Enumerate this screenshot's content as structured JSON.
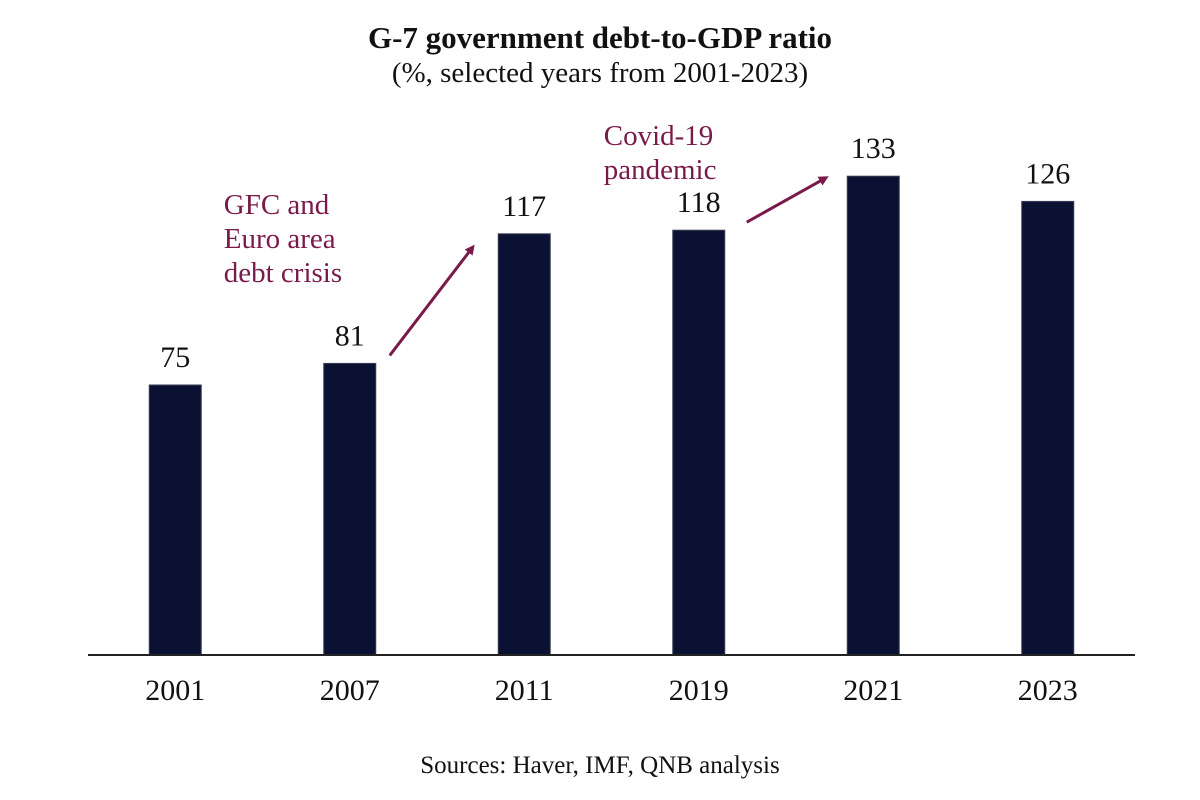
{
  "chart_data": {
    "type": "bar",
    "title": "G-7 government debt-to-GDP ratio",
    "subtitle": "(%, selected years from 2001-2023)",
    "xlabel": "",
    "ylabel": "",
    "categories": [
      "2001",
      "2007",
      "2011",
      "2019",
      "2021",
      "2023"
    ],
    "values": [
      75,
      81,
      117,
      118,
      133,
      126
    ],
    "data_labels": [
      "75",
      "81",
      "117",
      "118",
      "133",
      "126"
    ],
    "ylim": [
      0,
      140
    ],
    "grid": false,
    "legend": "none",
    "bar_color": "#0b1133",
    "annotation_color": "#7a1a4a",
    "annotations": [
      {
        "lines": [
          "GFC and",
          "Euro area",
          "debt crisis"
        ],
        "from_category": "2007",
        "to_category": "2011"
      },
      {
        "lines": [
          "Covid-19",
          "pandemic"
        ],
        "from_category": "2019",
        "to_category": "2021"
      }
    ],
    "source": "Sources: Haver, IMF, QNB analysis"
  }
}
